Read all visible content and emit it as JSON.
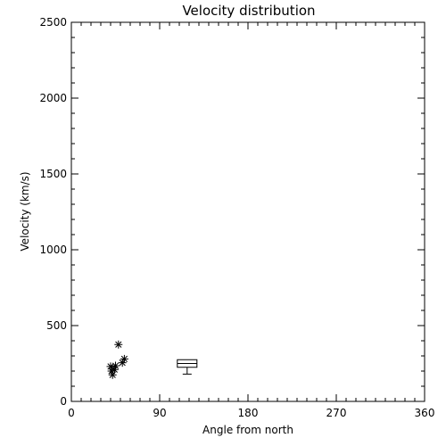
{
  "chart_data": {
    "type": "scatter",
    "title": "Velocity distribution",
    "xlabel": "Angle from north",
    "ylabel": "Velocity (km/s)",
    "xlim": [
      0,
      360
    ],
    "ylim": [
      0,
      2500
    ],
    "xticks": [
      0,
      90,
      180,
      270,
      360
    ],
    "yticks": [
      0,
      500,
      1000,
      1500,
      2000,
      2500
    ],
    "grid": false,
    "series": [
      {
        "marker": "asterisk",
        "points": [
          {
            "x": 40,
            "y": 230
          },
          {
            "x": 41,
            "y": 200
          },
          {
            "x": 42,
            "y": 175
          },
          {
            "x": 45,
            "y": 235
          },
          {
            "x": 44,
            "y": 210
          },
          {
            "x": 48,
            "y": 375
          },
          {
            "x": 52,
            "y": 255
          },
          {
            "x": 54,
            "y": 280
          }
        ]
      }
    ],
    "boxplot": {
      "x_start": 108,
      "x_end": 128,
      "whisker_low": 180,
      "q1": 225,
      "median": 250,
      "q3": 275,
      "whisker_high": 275
    }
  }
}
